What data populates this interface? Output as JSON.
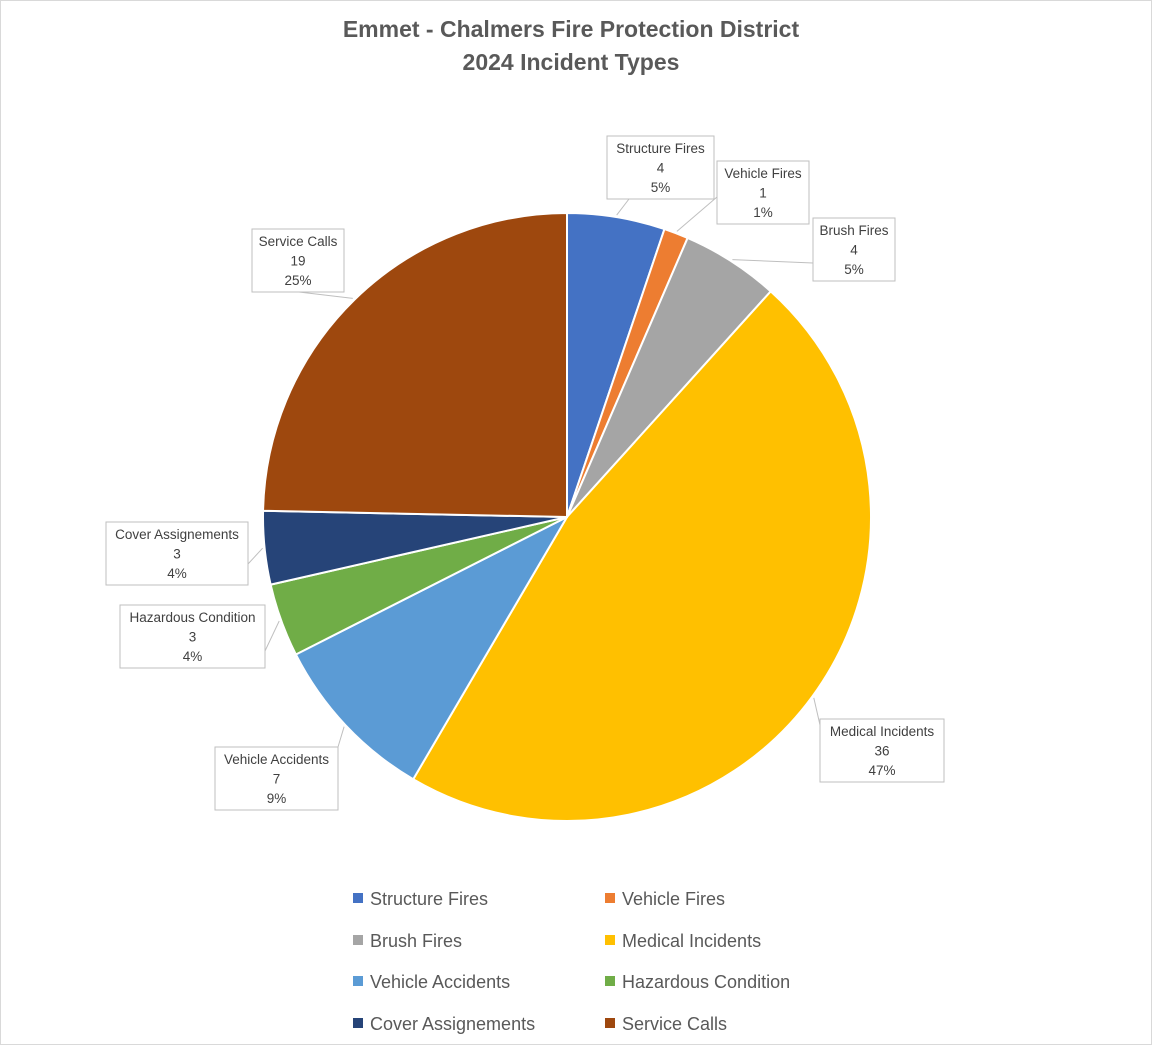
{
  "chart_data": {
    "type": "pie",
    "title": "Emmet - Chalmers Fire Protection District",
    "subtitle": "2024 Incident Types",
    "categories": [
      "Structure Fires",
      "Vehicle Fires",
      "Brush Fires",
      "Medical Incidents",
      "Vehicle Accidents",
      "Hazardous Condition",
      "Cover Assignements",
      "Service Calls"
    ],
    "callout_names": [
      "Structure  Fires",
      "Vehicle Fires",
      "Brush Fires",
      "Medical Incidents",
      "Vehicle Accidents",
      "Hazardous Condition",
      "Cover Assignements",
      "Service Calls"
    ],
    "values": [
      4,
      1,
      4,
      36,
      7,
      3,
      3,
      19
    ],
    "percent_labels": [
      "5%",
      "1%",
      "5%",
      "47%",
      "9%",
      "4%",
      "4%",
      "25%"
    ],
    "colors": [
      "#4472c4",
      "#ed7d31",
      "#a5a5a5",
      "#ffc000",
      "#5b9bd5",
      "#70ad47",
      "#264478",
      "#9e480e"
    ],
    "start_angle": "12 o'clock",
    "direction": "clockwise",
    "legend_position": "bottom",
    "data_labels": "callouts with category name, value and percentage"
  }
}
